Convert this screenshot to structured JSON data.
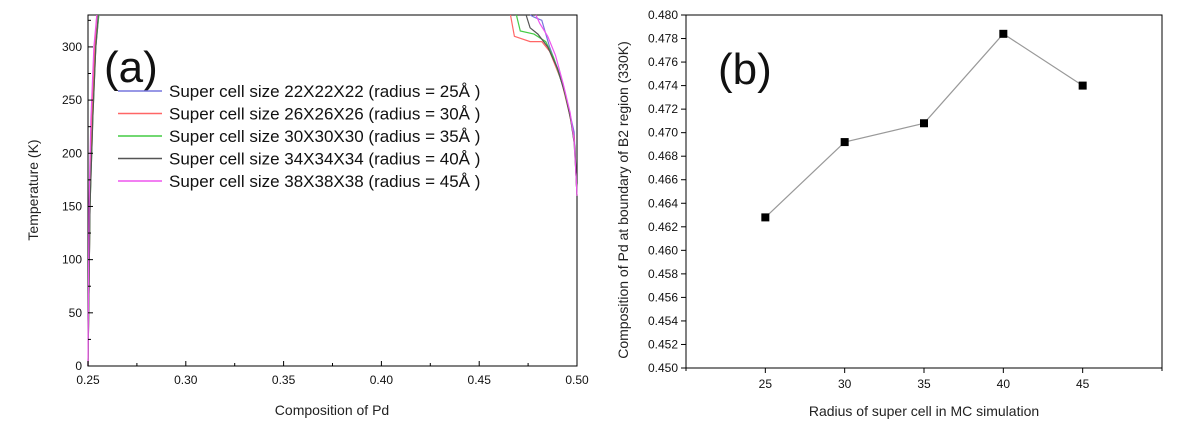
{
  "chart_data": [
    {
      "panel_label": "(a)",
      "type": "line",
      "xlabel": "Composition of Pd",
      "ylabel": "Temperature (K)",
      "xlim": [
        0.25,
        0.5
      ],
      "ylim": [
        0,
        330
      ],
      "xticks": [
        "0.25",
        "0.30",
        "0.35",
        "0.40",
        "0.45",
        "0.50"
      ],
      "yticks": [
        "0",
        "50",
        "100",
        "150",
        "200",
        "250",
        "300"
      ],
      "grid": false,
      "legend_position": "upper-left",
      "series": [
        {
          "name": "Super cell size 22X22X22 (radius = 25Å )",
          "color": "#7777dd",
          "left": [
            [
              0.25,
              0
            ],
            [
              0.251,
              150
            ],
            [
              0.252,
              230
            ],
            [
              0.254,
              300
            ],
            [
              0.2555,
              330
            ]
          ],
          "right": [
            [
              0.476,
              330
            ],
            [
              0.478,
              328
            ],
            [
              0.482,
              325
            ],
            [
              0.486,
              300
            ],
            [
              0.492,
              270
            ],
            [
              0.496,
              240
            ],
            [
              0.4985,
              220
            ],
            [
              0.4995,
              180
            ],
            [
              0.5,
              160
            ]
          ]
        },
        {
          "name": "Super cell size 26X26X26 (radius = 30Å )",
          "color": "#ff6666",
          "left": [
            [
              0.25,
              0
            ],
            [
              0.251,
              150
            ],
            [
              0.252,
              230
            ],
            [
              0.2535,
              300
            ],
            [
              0.2545,
              330
            ]
          ],
          "right": [
            [
              0.466,
              330
            ],
            [
              0.468,
              310
            ],
            [
              0.476,
              305
            ],
            [
              0.482,
              305
            ],
            [
              0.486,
              296
            ],
            [
              0.492,
              268
            ],
            [
              0.496,
              238
            ],
            [
              0.4985,
              215
            ],
            [
              0.4995,
              180
            ],
            [
              0.5,
              160
            ]
          ]
        },
        {
          "name": "Super cell size 30X30X30 (radius = 35Å )",
          "color": "#44cc44",
          "left": [
            [
              0.25,
              0
            ],
            [
              0.251,
              150
            ],
            [
              0.2525,
              235
            ],
            [
              0.254,
              300
            ],
            [
              0.2555,
              330
            ]
          ],
          "right": [
            [
              0.469,
              330
            ],
            [
              0.471,
              315
            ],
            [
              0.478,
              312
            ],
            [
              0.484,
              305
            ],
            [
              0.488,
              290
            ],
            [
              0.493,
              262
            ],
            [
              0.4965,
              235
            ],
            [
              0.4985,
              210
            ],
            [
              0.4995,
              180
            ],
            [
              0.5,
              160
            ]
          ]
        },
        {
          "name": "Super cell size 34X34X34 (radius = 40Å )",
          "color": "#555555",
          "left": [
            [
              0.25,
              0
            ],
            [
              0.251,
              150
            ],
            [
              0.2525,
              235
            ],
            [
              0.254,
              300
            ],
            [
              0.2552,
              330
            ]
          ],
          "right": [
            [
              0.474,
              330
            ],
            [
              0.476,
              318
            ],
            [
              0.48,
              312
            ],
            [
              0.485,
              300
            ],
            [
              0.49,
              280
            ],
            [
              0.494,
              255
            ],
            [
              0.497,
              230
            ],
            [
              0.499,
              205
            ],
            [
              0.4995,
              180
            ],
            [
              0.5,
              160
            ]
          ]
        },
        {
          "name": "Super cell size 38X38X38 (radius = 45Å )",
          "color": "#ee55ee",
          "left": [
            [
              0.25,
              0
            ],
            [
              0.2505,
              150
            ],
            [
              0.2515,
              232
            ],
            [
              0.253,
              300
            ],
            [
              0.2545,
              330
            ]
          ],
          "right": [
            [
              0.479,
              330
            ],
            [
              0.481,
              322
            ],
            [
              0.485,
              310
            ],
            [
              0.489,
              292
            ],
            [
              0.493,
              265
            ],
            [
              0.4965,
              238
            ],
            [
              0.4985,
              212
            ],
            [
              0.4995,
              180
            ],
            [
              0.5,
              160
            ]
          ]
        }
      ]
    },
    {
      "panel_label": "(b)",
      "type": "line",
      "xlabel": "Radius of super cell in MC simulation",
      "ylabel": "Composition of Pd at boundary of B2 region (330K)",
      "xlim": [
        20,
        50
      ],
      "ylim": [
        0.45,
        0.48
      ],
      "xticks": [
        "25",
        "30",
        "35",
        "40",
        "45"
      ],
      "yticks": [
        "0.450",
        "0.452",
        "0.454",
        "0.456",
        "0.458",
        "0.460",
        "0.462",
        "0.464",
        "0.466",
        "0.468",
        "0.470",
        "0.472",
        "0.474",
        "0.476",
        "0.478",
        "0.480"
      ],
      "grid": false,
      "marker": "square",
      "line_color": "#999999",
      "marker_color": "#000000",
      "x": [
        25,
        30,
        35,
        40,
        45
      ],
      "y": [
        0.4628,
        0.4692,
        0.4708,
        0.4784,
        0.474
      ]
    }
  ]
}
